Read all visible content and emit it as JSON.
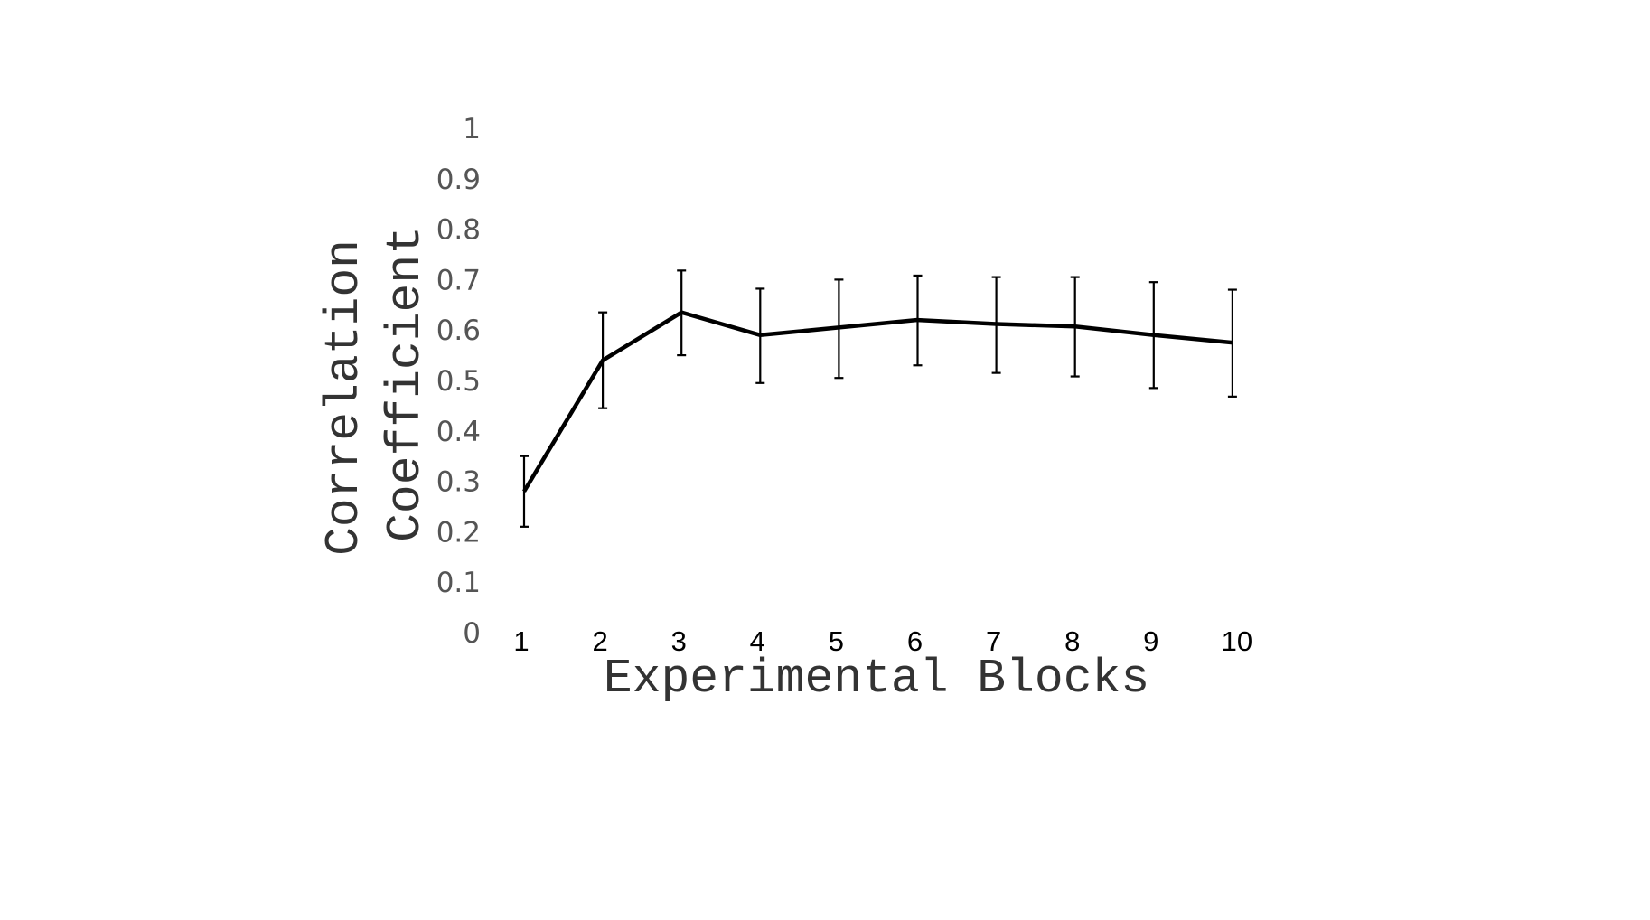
{
  "chart_data": {
    "type": "line",
    "title": "",
    "xlabel": "Experimental Blocks",
    "ylabel_lines": [
      "Correlation",
      "Coefficient"
    ],
    "categories": [
      "1",
      "2",
      "3",
      "4",
      "5",
      "6",
      "7",
      "8",
      "9",
      "10"
    ],
    "series": [
      {
        "values": [
          0.28,
          0.54,
          0.635,
          0.59,
          0.605,
          0.62,
          0.612,
          0.607,
          0.59,
          0.575
        ],
        "error_low": [
          0.21,
          0.445,
          0.55,
          0.495,
          0.505,
          0.53,
          0.515,
          0.508,
          0.485,
          0.468
        ],
        "error_high": [
          0.35,
          0.635,
          0.718,
          0.682,
          0.7,
          0.708,
          0.705,
          0.705,
          0.695,
          0.68
        ]
      }
    ],
    "yticks": [
      "0",
      "0.1",
      "0.2",
      "0.3",
      "0.4",
      "0.5",
      "0.6",
      "0.7",
      "0.8",
      "0.9",
      "1"
    ],
    "ylim": [
      0,
      1
    ],
    "grid": false,
    "legend": "none",
    "line_color": "#000000"
  }
}
